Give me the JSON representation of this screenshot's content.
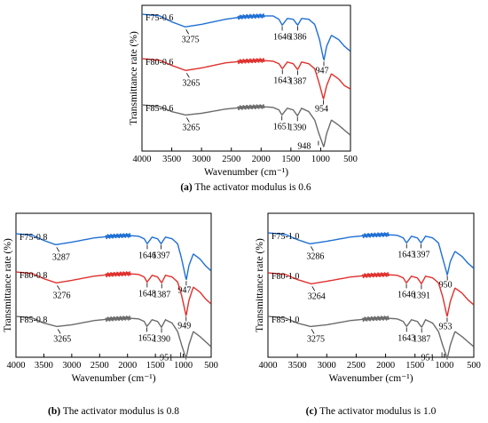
{
  "colors": {
    "blue": "#1f6fd4",
    "red": "#e0302c",
    "gray": "#6b6b6b"
  },
  "chart_data": [
    {
      "id": "a",
      "type": "line",
      "caption_letter": "(a)",
      "caption_text": " The activator modulus is 0.6",
      "xlabel": "Wavenumber (cm⁻¹)",
      "ylabel": "Transmittance rate (%)",
      "xlim": [
        4000,
        500
      ],
      "xticks": [
        4000,
        3500,
        3000,
        2500,
        2000,
        1500,
        1000,
        500
      ],
      "series": [
        {
          "name": "F75-0.6",
          "color": "blue",
          "points": [
            [
              4000,
              0
            ],
            [
              3700,
              -2
            ],
            [
              3500,
              -9
            ],
            [
              3275,
              -15
            ],
            [
              3000,
              -12
            ],
            [
              2600,
              -6
            ],
            [
              2300,
              -3
            ],
            [
              2000,
              -2
            ],
            [
              1800,
              -2
            ],
            [
              1700,
              -6
            ],
            [
              1646,
              -13
            ],
            [
              1560,
              -5
            ],
            [
              1460,
              -6
            ],
            [
              1386,
              -13
            ],
            [
              1320,
              -5
            ],
            [
              1200,
              -6
            ],
            [
              1100,
              -12
            ],
            [
              1020,
              -30
            ],
            [
              947,
              -55
            ],
            [
              900,
              -38
            ],
            [
              820,
              -25
            ],
            [
              700,
              -30
            ],
            [
              600,
              -38
            ],
            [
              500,
              -44
            ]
          ],
          "peaks": [
            {
              "label": "3275",
              "x": 3275
            },
            {
              "label": "1646",
              "x": 1646
            },
            {
              "label": "1386",
              "x": 1386
            },
            {
              "label": "947",
              "x": 947
            }
          ]
        },
        {
          "name": "F80-0.6",
          "color": "red",
          "points": [
            [
              4000,
              0
            ],
            [
              3700,
              -2
            ],
            [
              3500,
              -8
            ],
            [
              3265,
              -14
            ],
            [
              3000,
              -11
            ],
            [
              2600,
              -5
            ],
            [
              2300,
              -3
            ],
            [
              2000,
              -2
            ],
            [
              1800,
              -3
            ],
            [
              1700,
              -6
            ],
            [
              1643,
              -12
            ],
            [
              1560,
              -4
            ],
            [
              1460,
              -6
            ],
            [
              1387,
              -13
            ],
            [
              1320,
              -4
            ],
            [
              1200,
              -6
            ],
            [
              1100,
              -12
            ],
            [
              1030,
              -28
            ],
            [
              954,
              -48
            ],
            [
              900,
              -32
            ],
            [
              820,
              -18
            ],
            [
              700,
              -24
            ],
            [
              600,
              -32
            ],
            [
              500,
              -36
            ]
          ],
          "peaks": [
            {
              "label": "3265",
              "x": 3265
            },
            {
              "label": "1643",
              "x": 1643
            },
            {
              "label": "1387",
              "x": 1387
            },
            {
              "label": "954",
              "x": 954
            }
          ]
        },
        {
          "name": "F85-0.6",
          "color": "gray",
          "points": [
            [
              4000,
              0
            ],
            [
              3700,
              -2
            ],
            [
              3500,
              -8
            ],
            [
              3265,
              -12
            ],
            [
              3000,
              -10
            ],
            [
              2600,
              -5
            ],
            [
              2300,
              -3
            ],
            [
              2000,
              -2
            ],
            [
              1800,
              -3
            ],
            [
              1700,
              -6
            ],
            [
              1651,
              -12
            ],
            [
              1560,
              -4
            ],
            [
              1460,
              -6
            ],
            [
              1390,
              -13
            ],
            [
              1320,
              -4
            ],
            [
              1200,
              -8
            ],
            [
              1100,
              -18
            ],
            [
              1030,
              -34
            ],
            [
              948,
              -50
            ],
            [
              900,
              -34
            ],
            [
              820,
              -18
            ],
            [
              700,
              -24
            ],
            [
              600,
              -30
            ],
            [
              500,
              -36
            ]
          ],
          "peaks": [
            {
              "label": "3265",
              "x": 3265
            },
            {
              "label": "1651",
              "x": 1651
            },
            {
              "label": "1390",
              "x": 1390
            },
            {
              "label": "948",
              "x": 948
            }
          ]
        }
      ]
    },
    {
      "id": "b",
      "type": "line",
      "caption_letter": "(b)",
      "caption_text": " The activator modulus is 0.8",
      "xlabel": "Wavenumber (cm⁻¹)",
      "ylabel": "Transmittance rate (%)",
      "xlim": [
        4000,
        500
      ],
      "xticks": [
        4000,
        3500,
        3000,
        2500,
        2000,
        1500,
        1000,
        500
      ],
      "series": [
        {
          "name": "F75-0.8",
          "color": "blue",
          "points": [
            [
              4000,
              0
            ],
            [
              3700,
              -2
            ],
            [
              3500,
              -8
            ],
            [
              3287,
              -13
            ],
            [
              3000,
              -10
            ],
            [
              2600,
              -5
            ],
            [
              2300,
              -3
            ],
            [
              2000,
              -2
            ],
            [
              1800,
              -3
            ],
            [
              1700,
              -6
            ],
            [
              1646,
              -12
            ],
            [
              1560,
              -4
            ],
            [
              1460,
              -6
            ],
            [
              1397,
              -12
            ],
            [
              1320,
              -4
            ],
            [
              1200,
              -6
            ],
            [
              1100,
              -12
            ],
            [
              1030,
              -30
            ],
            [
              947,
              -55
            ],
            [
              900,
              -38
            ],
            [
              820,
              -24
            ],
            [
              700,
              -30
            ],
            [
              600,
              -38
            ],
            [
              500,
              -44
            ]
          ],
          "peaks": [
            {
              "label": "3287",
              "x": 3287
            },
            {
              "label": "1646",
              "x": 1646
            },
            {
              "label": "1397",
              "x": 1397
            },
            {
              "label": "947",
              "x": 947
            }
          ]
        },
        {
          "name": "F80-0.8",
          "color": "red",
          "points": [
            [
              4000,
              0
            ],
            [
              3700,
              -2
            ],
            [
              3500,
              -8
            ],
            [
              3276,
              -13
            ],
            [
              3000,
              -10
            ],
            [
              2600,
              -5
            ],
            [
              2300,
              -3
            ],
            [
              2000,
              -2
            ],
            [
              1800,
              -3
            ],
            [
              1700,
              -6
            ],
            [
              1648,
              -12
            ],
            [
              1560,
              -4
            ],
            [
              1460,
              -6
            ],
            [
              1387,
              -13
            ],
            [
              1320,
              -4
            ],
            [
              1200,
              -6
            ],
            [
              1100,
              -12
            ],
            [
              1030,
              -28
            ],
            [
              949,
              -52
            ],
            [
              900,
              -34
            ],
            [
              820,
              -18
            ],
            [
              700,
              -24
            ],
            [
              600,
              -32
            ],
            [
              500,
              -38
            ]
          ],
          "peaks": [
            {
              "label": "3276",
              "x": 3276
            },
            {
              "label": "1648",
              "x": 1648
            },
            {
              "label": "1387",
              "x": 1387
            },
            {
              "label": "949",
              "x": 949
            }
          ]
        },
        {
          "name": "F85-0.8",
          "color": "gray",
          "points": [
            [
              4000,
              0
            ],
            [
              3700,
              -2
            ],
            [
              3500,
              -8
            ],
            [
              3265,
              -12
            ],
            [
              3000,
              -10
            ],
            [
              2600,
              -5
            ],
            [
              2300,
              -3
            ],
            [
              2000,
              -2
            ],
            [
              1800,
              -3
            ],
            [
              1700,
              -6
            ],
            [
              1652,
              -12
            ],
            [
              1560,
              -4
            ],
            [
              1460,
              -6
            ],
            [
              1390,
              -13
            ],
            [
              1320,
              -4
            ],
            [
              1200,
              -8
            ],
            [
              1100,
              -18
            ],
            [
              1030,
              -34
            ],
            [
              951,
              -50
            ],
            [
              900,
              -34
            ],
            [
              820,
              -18
            ],
            [
              700,
              -24
            ],
            [
              600,
              -30
            ],
            [
              500,
              -36
            ]
          ],
          "peaks": [
            {
              "label": "3265",
              "x": 3265
            },
            {
              "label": "1652",
              "x": 1652
            },
            {
              "label": "1390",
              "x": 1390
            },
            {
              "label": "951",
              "x": 951
            }
          ]
        }
      ]
    },
    {
      "id": "c",
      "type": "line",
      "caption_letter": "(c)",
      "caption_text": " The activator modulus is 1.0",
      "xlabel": "Wavenumber (cm⁻¹)",
      "ylabel": "Transmittance rate (%)",
      "xlim": [
        4000,
        500
      ],
      "xticks": [
        4000,
        3500,
        3000,
        2500,
        2000,
        1500,
        1000,
        500
      ],
      "series": [
        {
          "name": "F75-1.0",
          "color": "blue",
          "points": [
            [
              4000,
              0
            ],
            [
              3700,
              -2
            ],
            [
              3500,
              -8
            ],
            [
              3286,
              -13
            ],
            [
              3000,
              -10
            ],
            [
              2600,
              -5
            ],
            [
              2300,
              -3
            ],
            [
              2000,
              -2
            ],
            [
              1800,
              -3
            ],
            [
              1700,
              -6
            ],
            [
              1643,
              -12
            ],
            [
              1560,
              -4
            ],
            [
              1460,
              -6
            ],
            [
              1397,
              -12
            ],
            [
              1320,
              -4
            ],
            [
              1200,
              -6
            ],
            [
              1100,
              -12
            ],
            [
              1030,
              -30
            ],
            [
              950,
              -50
            ],
            [
              900,
              -34
            ],
            [
              820,
              -22
            ],
            [
              700,
              -28
            ],
            [
              600,
              -36
            ],
            [
              500,
              -42
            ]
          ],
          "peaks": [
            {
              "label": "3286",
              "x": 3286
            },
            {
              "label": "1643",
              "x": 1643
            },
            {
              "label": "1397",
              "x": 1397
            },
            {
              "label": "950",
              "x": 950
            }
          ]
        },
        {
          "name": "F80-1.0",
          "color": "red",
          "points": [
            [
              4000,
              0
            ],
            [
              3700,
              -2
            ],
            [
              3500,
              -8
            ],
            [
              3264,
              -13
            ],
            [
              3000,
              -10
            ],
            [
              2600,
              -5
            ],
            [
              2300,
              -3
            ],
            [
              2000,
              -2
            ],
            [
              1800,
              -3
            ],
            [
              1700,
              -6
            ],
            [
              1646,
              -12
            ],
            [
              1560,
              -4
            ],
            [
              1460,
              -6
            ],
            [
              1391,
              -13
            ],
            [
              1320,
              -4
            ],
            [
              1200,
              -6
            ],
            [
              1100,
              -12
            ],
            [
              1030,
              -28
            ],
            [
              953,
              -52
            ],
            [
              900,
              -34
            ],
            [
              820,
              -18
            ],
            [
              700,
              -24
            ],
            [
              600,
              -32
            ],
            [
              500,
              -38
            ]
          ],
          "peaks": [
            {
              "label": "3264",
              "x": 3264
            },
            {
              "label": "1646",
              "x": 1646
            },
            {
              "label": "1391",
              "x": 1391
            },
            {
              "label": "953",
              "x": 953
            }
          ]
        },
        {
          "name": "F85-1.0",
          "color": "gray",
          "points": [
            [
              4000,
              0
            ],
            [
              3700,
              -2
            ],
            [
              3500,
              -8
            ],
            [
              3275,
              -12
            ],
            [
              3000,
              -10
            ],
            [
              2600,
              -5
            ],
            [
              2300,
              -3
            ],
            [
              2000,
              -2
            ],
            [
              1800,
              -3
            ],
            [
              1700,
              -6
            ],
            [
              1643,
              -12
            ],
            [
              1560,
              -4
            ],
            [
              1460,
              -6
            ],
            [
              1387,
              -13
            ],
            [
              1320,
              -4
            ],
            [
              1200,
              -8
            ],
            [
              1100,
              -18
            ],
            [
              1030,
              -34
            ],
            [
              951,
              -50
            ],
            [
              900,
              -34
            ],
            [
              820,
              -18
            ],
            [
              700,
              -24
            ],
            [
              600,
              -30
            ],
            [
              500,
              -36
            ]
          ],
          "peaks": [
            {
              "label": "3275",
              "x": 3275
            },
            {
              "label": "1643",
              "x": 1643
            },
            {
              "label": "1387",
              "x": 1387
            },
            {
              "label": "951",
              "x": 951
            }
          ]
        }
      ]
    }
  ]
}
